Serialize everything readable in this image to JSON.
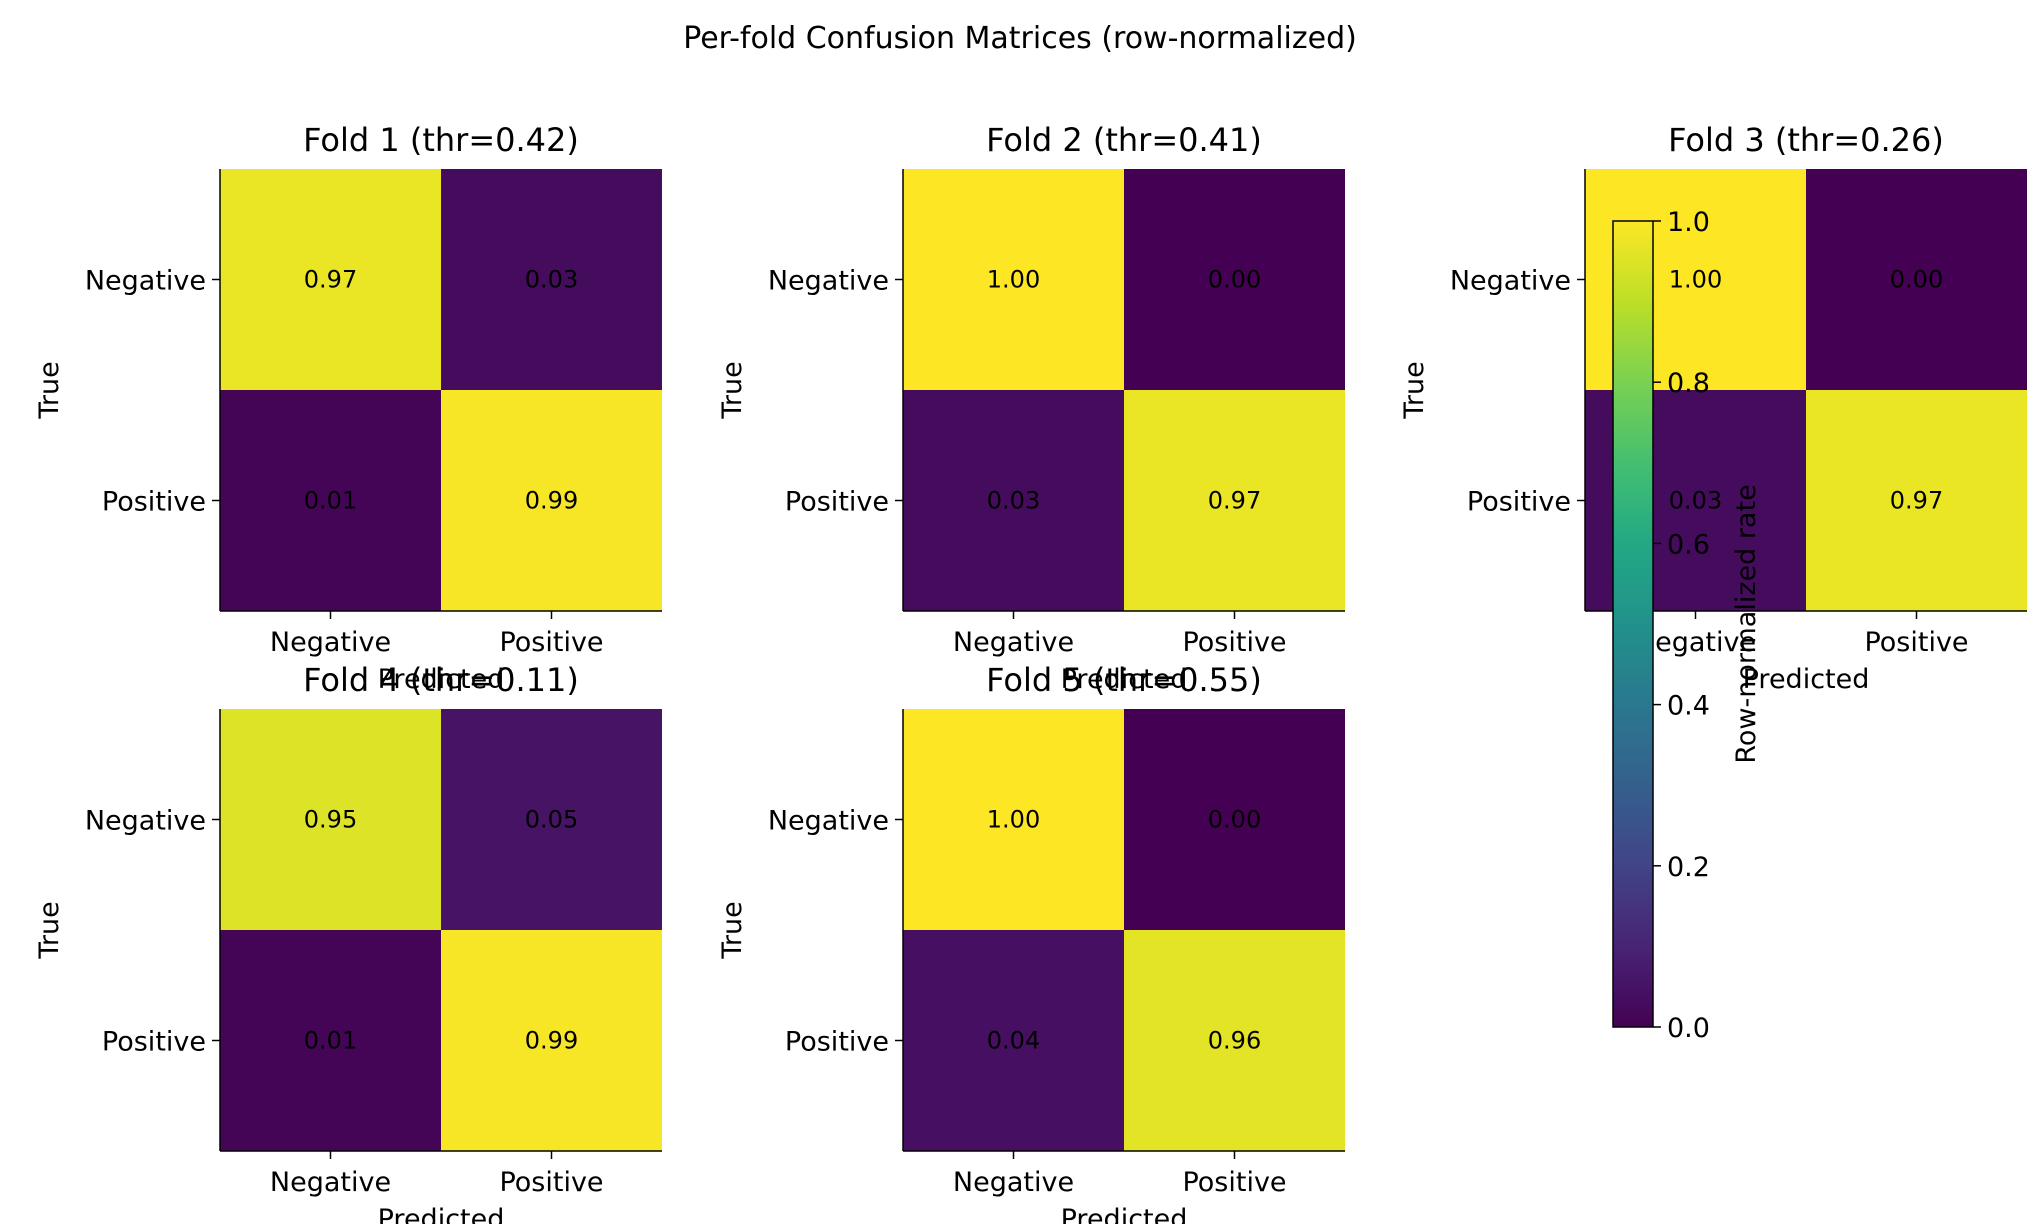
{
  "chart_data": {
    "type": "heatmap",
    "title": "Per-fold Confusion Matrices (row-normalized)",
    "colormap": "viridis",
    "row_categories": [
      "Negative",
      "Positive"
    ],
    "col_categories": [
      "Negative",
      "Positive"
    ],
    "xlabel": "Predicted",
    "ylabel": "True",
    "value_range": [
      0,
      1
    ],
    "value_format": "0.00",
    "panels": [
      {
        "title": "Fold 1 (thr=0.42)",
        "matrix": [
          [
            0.97,
            0.03
          ],
          [
            0.01,
            0.99
          ]
        ]
      },
      {
        "title": "Fold 2 (thr=0.41)",
        "matrix": [
          [
            1.0,
            0.0
          ],
          [
            0.03,
            0.97
          ]
        ]
      },
      {
        "title": "Fold 3 (thr=0.26)",
        "matrix": [
          [
            1.0,
            0.0
          ],
          [
            0.03,
            0.97
          ]
        ]
      },
      {
        "title": "Fold 4 (thr=0.11)",
        "matrix": [
          [
            0.95,
            0.05
          ],
          [
            0.01,
            0.99
          ]
        ]
      },
      {
        "title": "Fold 5 (thr=0.55)",
        "matrix": [
          [
            1.0,
            0.0
          ],
          [
            0.04,
            0.96
          ]
        ]
      }
    ],
    "colorbar": {
      "label": "Row-normalized rate",
      "ticks": [
        0.0,
        0.2,
        0.4,
        0.6,
        0.8,
        1.0
      ],
      "tick_labels": [
        "0.0",
        "0.2",
        "0.4",
        "0.6",
        "0.8",
        "1.0"
      ]
    }
  }
}
